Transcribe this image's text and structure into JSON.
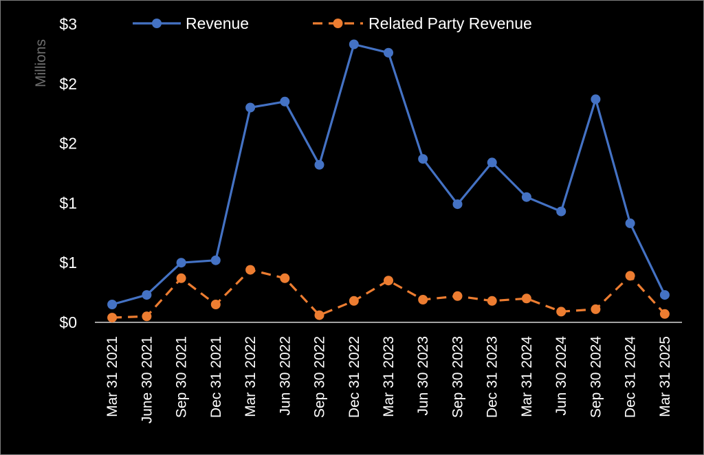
{
  "chart_data": {
    "type": "line",
    "x": [
      "Mar 31 2021",
      "June 30 2021",
      "Sep 30 2021",
      "Dec 31 2021",
      "Mar 31 2022",
      "Jun 30 2022",
      "Sep 30 2022",
      "Dec 31 2022",
      "Mar 31 2023",
      "Jun 30 2023",
      "Sep 30 2023",
      "Dec 31 2023",
      "Mar 31 2024",
      "Jun 30 2024",
      "Sep 30 2024",
      "Dec 31 2024",
      "Mar 31 2025"
    ],
    "series": [
      {
        "name": "Revenue",
        "color": "#4472c4",
        "dash": "solid",
        "values": [
          0.15,
          0.23,
          0.5,
          0.52,
          1.8,
          1.85,
          1.32,
          2.33,
          2.26,
          1.37,
          0.99,
          1.34,
          1.05,
          0.93,
          1.87,
          0.83,
          0.23
        ]
      },
      {
        "name": "Related Party Revenue",
        "color": "#ed7d31",
        "dash": "dashed",
        "values": [
          0.04,
          0.05,
          0.37,
          0.15,
          0.44,
          0.37,
          0.06,
          0.18,
          0.35,
          0.19,
          0.22,
          0.18,
          0.2,
          0.09,
          0.11,
          0.39,
          0.07
        ]
      }
    ],
    "y_tick_values": [
      0,
      0.5,
      1.0,
      1.5,
      2.0,
      2.5
    ],
    "y_tick_labels": [
      "$0",
      "$1",
      "$1",
      "$2",
      "$2",
      "$3"
    ],
    "ylim": [
      0,
      2.5
    ],
    "units_label": "Millions",
    "xlabel": "",
    "ylabel": "",
    "title": "",
    "legend_position": "top",
    "grid": false
  }
}
